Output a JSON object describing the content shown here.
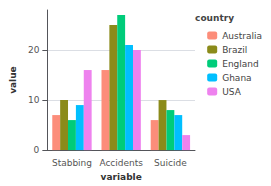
{
  "chart_data": {
    "type": "bar",
    "xlabel": "variable",
    "ylabel": "value",
    "categories": [
      "Stabbing",
      "Accidents",
      "Suicide"
    ],
    "series": [
      {
        "name": "Australia",
        "color": "#FC8D7A",
        "values": [
          7,
          16,
          6
        ]
      },
      {
        "name": "Brazil",
        "color": "#8B8B1A",
        "values": [
          10,
          25,
          10
        ]
      },
      {
        "name": "England",
        "color": "#00CC7A",
        "values": [
          6,
          27,
          8
        ]
      },
      {
        "name": "Ghana",
        "color": "#00BFFF",
        "values": [
          9,
          21,
          7
        ]
      },
      {
        "name": "USA",
        "color": "#EE82EE",
        "values": [
          16,
          20,
          3
        ]
      }
    ],
    "ylim": [
      0,
      28
    ],
    "yticks": [
      0,
      10,
      20
    ],
    "grid": true,
    "legend": "right",
    "legend_title": "country"
  }
}
